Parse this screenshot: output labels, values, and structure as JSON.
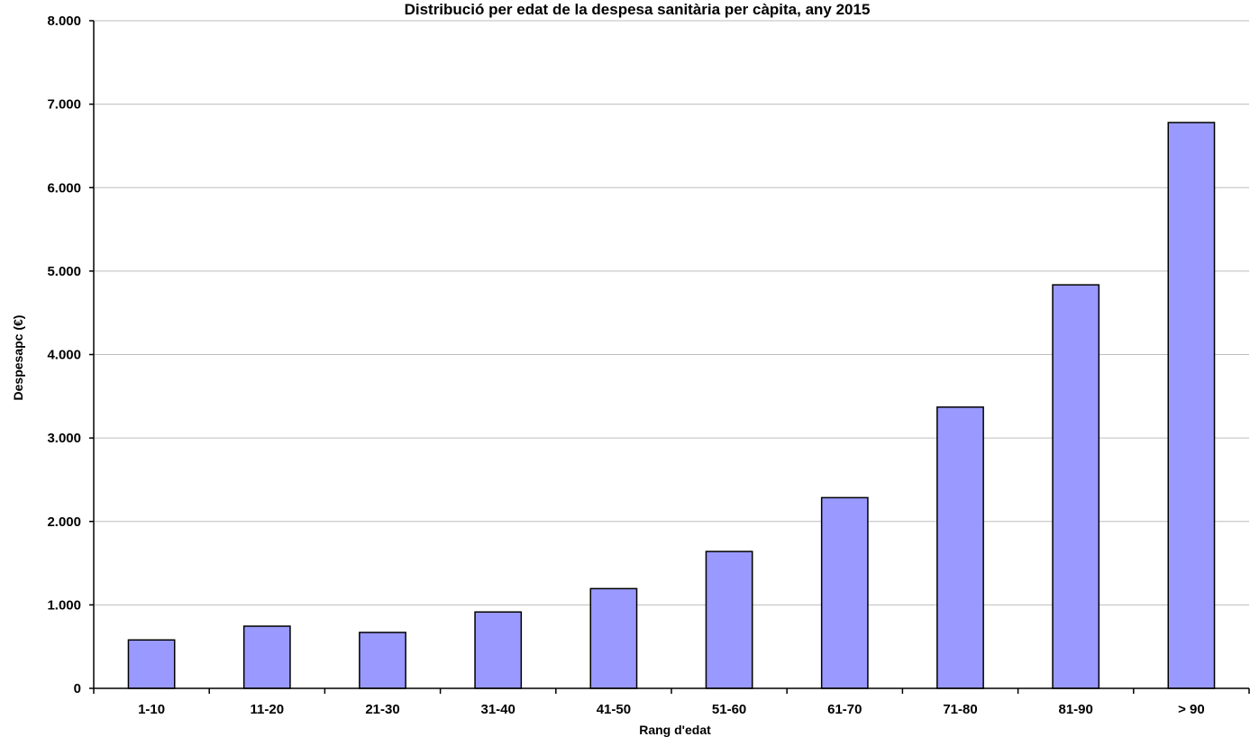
{
  "chart_data": {
    "type": "bar",
    "title": "Distribució per edat de la despesa sanitària per càpita, any 2015",
    "xlabel": "Rang d'edat",
    "ylabel": "Despesapc (€)",
    "categories": [
      "1-10",
      "11-20",
      "21-30",
      "31-40",
      "41-50",
      "51-60",
      "61-70",
      "71-80",
      "81-90",
      "> 90"
    ],
    "values": [
      580,
      745,
      670,
      915,
      1195,
      1640,
      2285,
      3370,
      4835,
      6780
    ],
    "ylim": [
      0,
      8000
    ],
    "yticks": [
      0,
      1000,
      2000,
      3000,
      4000,
      5000,
      6000,
      7000,
      8000
    ],
    "ytick_labels": [
      "0",
      "1.000",
      "2.000",
      "3.000",
      "4.000",
      "5.000",
      "6.000",
      "7.000",
      "8.000"
    ],
    "grid": true,
    "colors": {
      "bar_fill": "#9999ff",
      "bar_stroke": "#000000",
      "grid": "#bdbdbd"
    }
  }
}
